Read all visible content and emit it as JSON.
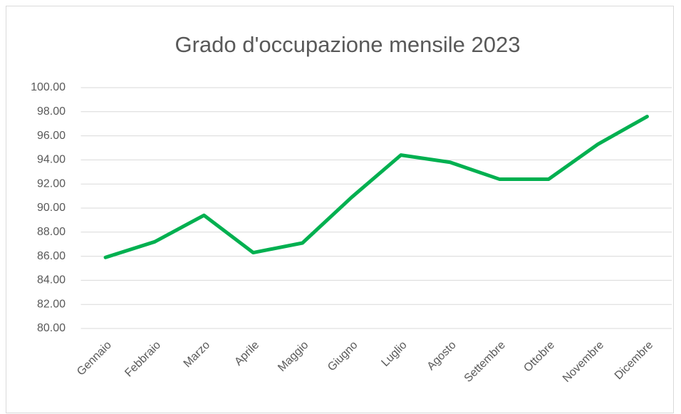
{
  "chart_data": {
    "type": "line",
    "title": "Grado d'occupazione mensile 2023",
    "categories": [
      "Gennaio",
      "Febbraio",
      "Marzo",
      "Aprile",
      "Maggio",
      "Giugno",
      "Luglio",
      "Agosto",
      "Settembre",
      "Ottobre",
      "Novembre",
      "Dicembre"
    ],
    "series": [
      {
        "name": "Grado d'occupazione",
        "color": "#00b050",
        "values": [
          85.9,
          87.2,
          89.4,
          86.3,
          87.1,
          90.9,
          94.4,
          93.8,
          92.4,
          92.4,
          95.3,
          97.6
        ]
      }
    ],
    "ylim": [
      80,
      100
    ],
    "yticks": [
      {
        "value": 80,
        "label": "80.00"
      },
      {
        "value": 82,
        "label": "82.00"
      },
      {
        "value": 84,
        "label": "84.00"
      },
      {
        "value": 86,
        "label": "86.00"
      },
      {
        "value": 88,
        "label": "88.00"
      },
      {
        "value": 90,
        "label": "90.00"
      },
      {
        "value": 92,
        "label": "92.00"
      },
      {
        "value": 94,
        "label": "94.00"
      },
      {
        "value": 96,
        "label": "96.00"
      },
      {
        "value": 98,
        "label": "98.00"
      },
      {
        "value": 100,
        "label": "100.00"
      }
    ],
    "grid": true
  }
}
